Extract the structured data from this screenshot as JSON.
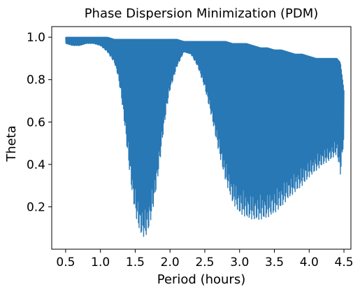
{
  "chart_data": {
    "type": "line",
    "title": "Phase Dispersion Minimization (PDM)",
    "xlabel": "Period (hours)",
    "ylabel": "Theta",
    "xlim": [
      0.3,
      4.6
    ],
    "ylim": [
      0.0,
      1.05
    ],
    "xticks": [
      0.5,
      1.0,
      1.5,
      2.0,
      2.5,
      3.0,
      3.5,
      4.0,
      4.5
    ],
    "xtick_labels": [
      "0.5",
      "1.0",
      "1.5",
      "2.0",
      "2.5",
      "3.0",
      "3.5",
      "4.0",
      "4.5"
    ],
    "yticks": [
      0.2,
      0.4,
      0.6,
      0.8,
      1.0
    ],
    "ytick_labels": [
      "0.2",
      "0.4",
      "0.6",
      "0.8",
      "1.0"
    ],
    "grid": false,
    "line_color": "#2878b5",
    "series": [
      {
        "x": [
          0.5,
          0.6,
          0.7,
          0.8,
          0.9,
          1.0,
          1.1,
          1.2,
          1.25,
          1.3,
          1.35,
          1.4,
          1.45,
          1.5,
          1.55,
          1.6,
          1.65,
          1.7,
          1.75,
          1.8,
          1.85,
          1.9,
          1.95,
          2.0,
          2.1,
          2.2,
          2.3,
          2.4,
          2.5,
          2.6,
          2.7,
          2.8,
          2.9,
          3.0,
          3.1,
          3.2,
          3.3,
          3.4,
          3.5,
          3.6,
          3.7,
          3.8,
          3.9,
          4.0,
          4.1,
          4.2,
          4.3,
          4.4,
          4.45,
          4.5
        ],
        "envelope_low": [
          0.97,
          0.96,
          0.96,
          0.97,
          0.97,
          0.96,
          0.93,
          0.88,
          0.82,
          0.72,
          0.58,
          0.42,
          0.28,
          0.17,
          0.1,
          0.06,
          0.06,
          0.1,
          0.18,
          0.28,
          0.4,
          0.54,
          0.66,
          0.75,
          0.86,
          0.93,
          0.92,
          0.86,
          0.76,
          0.62,
          0.46,
          0.32,
          0.22,
          0.17,
          0.15,
          0.14,
          0.14,
          0.15,
          0.17,
          0.2,
          0.24,
          0.27,
          0.3,
          0.34,
          0.37,
          0.4,
          0.42,
          0.45,
          0.35,
          0.52
        ],
        "envelope_high": [
          1.0,
          1.0,
          1.0,
          1.0,
          1.0,
          1.0,
          1.0,
          0.99,
          0.99,
          0.99,
          0.99,
          0.99,
          0.99,
          0.99,
          0.99,
          0.99,
          0.99,
          0.99,
          0.99,
          0.99,
          0.99,
          0.99,
          0.99,
          0.99,
          0.99,
          0.98,
          0.98,
          0.98,
          0.98,
          0.98,
          0.98,
          0.98,
          0.97,
          0.97,
          0.97,
          0.96,
          0.95,
          0.95,
          0.94,
          0.94,
          0.93,
          0.92,
          0.92,
          0.91,
          0.9,
          0.9,
          0.9,
          0.9,
          0.88,
          0.75
        ],
        "dense_band_low": [
          0.97,
          0.96,
          0.96,
          0.97,
          0.97,
          0.96,
          0.94,
          0.91,
          0.88,
          0.82,
          0.76,
          0.68,
          0.62,
          0.58,
          0.56,
          0.55,
          0.55,
          0.56,
          0.57,
          0.6,
          0.64,
          0.7,
          0.76,
          0.81,
          0.88,
          0.93,
          0.92,
          0.9,
          0.85,
          0.8,
          0.74,
          0.7,
          0.65,
          0.62,
          0.6,
          0.58,
          0.58,
          0.58,
          0.59,
          0.6,
          0.6,
          0.61,
          0.62,
          0.62,
          0.63,
          0.63,
          0.64,
          0.64,
          0.63,
          0.62
        ],
        "dense_band_high": [
          1.0,
          1.0,
          0.99,
          0.99,
          0.99,
          0.99,
          0.99,
          0.98,
          0.98,
          0.98,
          0.98,
          0.98,
          0.98,
          0.97,
          0.97,
          0.97,
          0.97,
          0.97,
          0.97,
          0.97,
          0.97,
          0.97,
          0.97,
          0.97,
          0.97,
          0.96,
          0.96,
          0.95,
          0.94,
          0.93,
          0.92,
          0.9,
          0.88,
          0.86,
          0.84,
          0.82,
          0.8,
          0.79,
          0.78,
          0.77,
          0.77,
          0.76,
          0.76,
          0.75,
          0.75,
          0.75,
          0.75,
          0.75,
          0.74,
          0.74
        ]
      }
    ]
  }
}
